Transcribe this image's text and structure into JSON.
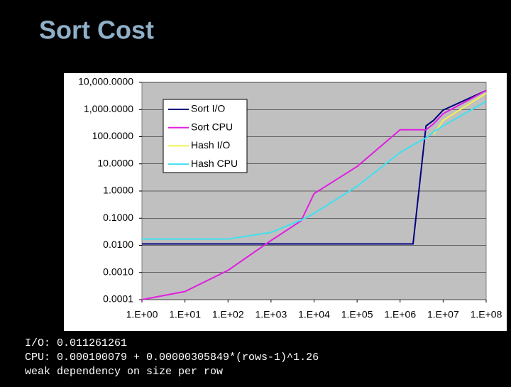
{
  "chart_data": {
    "type": "line",
    "title": "Sort Cost",
    "xlog": true,
    "ylog": true,
    "grid": true,
    "plot_color": "#c0c0c0",
    "xlim": [
      1,
      100000000
    ],
    "ylim": [
      0.0001,
      10000
    ],
    "xticks": [
      {
        "value": 1,
        "label": "1.E+00"
      },
      {
        "value": 10,
        "label": "1.E+01"
      },
      {
        "value": 100,
        "label": "1.E+02"
      },
      {
        "value": 1000,
        "label": "1.E+03"
      },
      {
        "value": 10000,
        "label": "1.E+04"
      },
      {
        "value": 100000,
        "label": "1.E+05"
      },
      {
        "value": 1000000,
        "label": "1.E+06"
      },
      {
        "value": 10000000,
        "label": "1.E+07"
      },
      {
        "value": 100000000,
        "label": "1.E+08"
      }
    ],
    "yticks": [
      {
        "value": 0.0001,
        "label": "0.0001"
      },
      {
        "value": 0.001,
        "label": "0.0010"
      },
      {
        "value": 0.01,
        "label": "0.0100"
      },
      {
        "value": 0.1,
        "label": "0.1000"
      },
      {
        "value": 1,
        "label": "1.0000"
      },
      {
        "value": 10,
        "label": "10.0000"
      },
      {
        "value": 100,
        "label": "100.0000"
      },
      {
        "value": 1000,
        "label": "1,000.0000"
      },
      {
        "value": 10000,
        "label": "10,000.0000"
      }
    ],
    "x": [
      1,
      10,
      100,
      1000,
      5000,
      10000,
      100000,
      1000000,
      2000000,
      4000000,
      6000000,
      10000000,
      100000000
    ],
    "series": [
      {
        "name": "Sort I/O",
        "color": "#000080",
        "values": [
          0.0113,
          0.0113,
          0.0113,
          0.0113,
          0.0113,
          0.0113,
          0.0113,
          0.0113,
          0.0113,
          250,
          400,
          950,
          5000
        ]
      },
      {
        "name": "Sort CPU",
        "color": "#e020e0",
        "values": [
          0.0001,
          0.0002,
          0.0012,
          0.015,
          0.08,
          0.8,
          8,
          180,
          180,
          180,
          300,
          700,
          5000
        ]
      },
      {
        "name": "Hash I/O",
        "color": "#f0f050",
        "values": [
          null,
          null,
          null,
          null,
          null,
          null,
          null,
          null,
          null,
          null,
          120,
          400,
          4000
        ]
      },
      {
        "name": "Hash CPU",
        "color": "#40e0f0",
        "values": [
          0.017,
          0.017,
          0.017,
          0.03,
          0.085,
          0.15,
          1.5,
          26,
          50,
          90,
          150,
          250,
          2000
        ]
      }
    ],
    "annotations": [
      "I/O: 0.011261261",
      "CPU: 0.000100079 + 0.00000305849*(rows-1)^1.26",
      "weak dependency on size per row"
    ]
  }
}
